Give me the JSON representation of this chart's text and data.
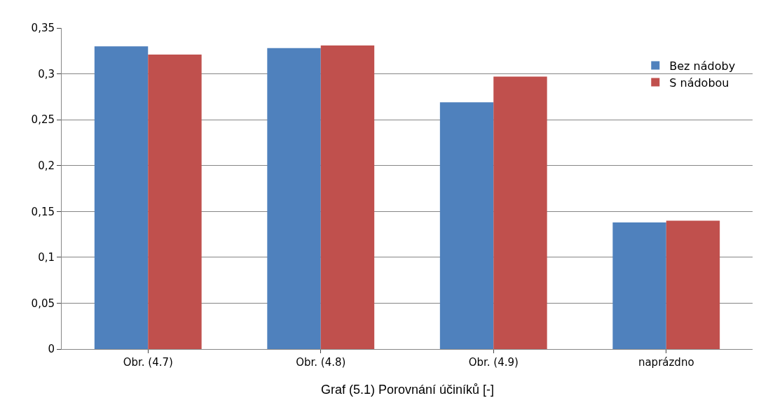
{
  "chart_data": {
    "type": "bar",
    "categories": [
      "Obr. (4.7)",
      "Obr. (4.8)",
      "Obr. (4.9)",
      "naprázdno"
    ],
    "series": [
      {
        "name": "Bez nádoby",
        "color": "#4f81bd",
        "values": [
          0.33,
          0.328,
          0.269,
          0.138
        ]
      },
      {
        "name": "S nádobou",
        "color": "#c0504d",
        "values": [
          0.321,
          0.331,
          0.297,
          0.14
        ]
      }
    ],
    "ylim": [
      0,
      0.35
    ],
    "yticks": [
      0,
      {
        "value": 0.05,
        "label": "0,05"
      },
      {
        "value": 0.1,
        "label": "0,1"
      },
      {
        "value": 0.15,
        "label": "0,15"
      },
      {
        "value": 0.2,
        "label": "0,2"
      },
      {
        "value": 0.25,
        "label": "0,25"
      },
      {
        "value": 0.3,
        "label": "0,3"
      },
      {
        "value": 0.35,
        "label": "0,35"
      }
    ],
    "grid": "y",
    "legend": "top right",
    "annotations": [
      "Graf (5.1) Porovnání účiníků [-]"
    ]
  }
}
